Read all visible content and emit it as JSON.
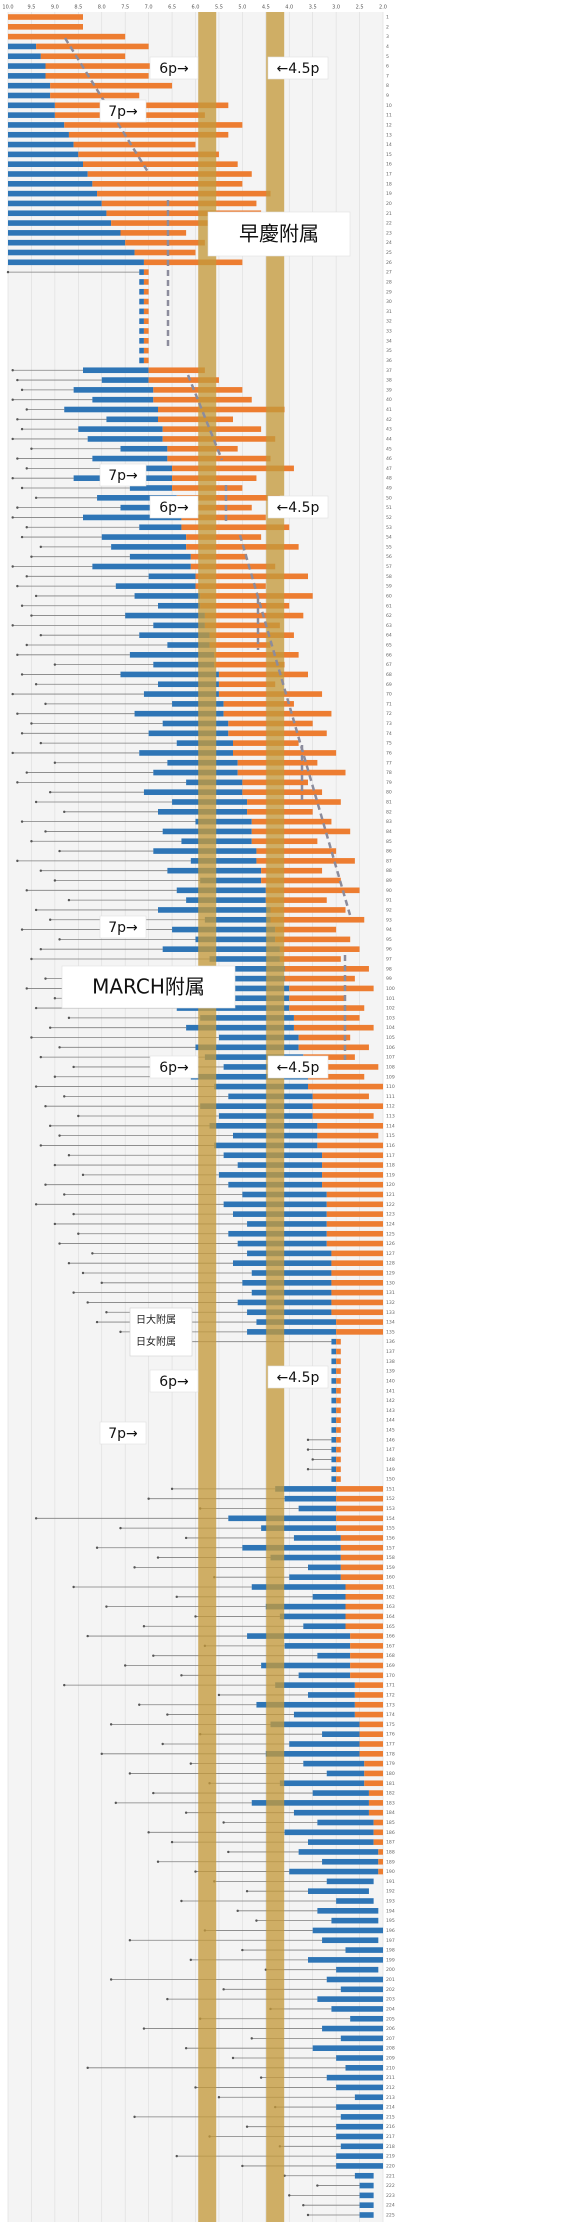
{
  "chart_data": {
    "type": "range-bar",
    "xlim": [
      10,
      2
    ],
    "xticks": [
      {
        "value": 10,
        "label": "10.0"
      },
      9.5,
      {
        "value": 9,
        "label": "9.0"
      },
      8.5,
      {
        "value": 8,
        "label": "8.0"
      },
      7.5,
      {
        "value": 7,
        "label": "7.0"
      },
      6.5,
      {
        "value": 6,
        "label": "6.0"
      },
      5.5,
      {
        "value": 5,
        "label": "5.0"
      },
      4.5,
      {
        "value": 4,
        "label": "4.0"
      },
      3.5,
      {
        "value": 3,
        "label": "3.0"
      },
      2.5,
      {
        "value": 2,
        "label": "2.0"
      }
    ],
    "grid": true,
    "colors": {
      "whisker": "#7f7f7f",
      "blue": "#2e75b6",
      "orange": "#ed7d31",
      "band": "#c49a3c"
    },
    "bands": [
      5.75,
      4.3
    ],
    "annotations": {
      "p6": "6p→",
      "p45": "←4.5p",
      "p7": "7p→",
      "group1": "早慶附属",
      "group2": "MARCH附属",
      "group3": "日大附属",
      "group4": "日女附属"
    },
    "categories": [
      1,
      2,
      3,
      4,
      5,
      6,
      7,
      8,
      9,
      10,
      11,
      12,
      13,
      14,
      15,
      16,
      17,
      18,
      19,
      20,
      21,
      22,
      23,
      24,
      25,
      26,
      27,
      28,
      29,
      30,
      31,
      32,
      33,
      34,
      35,
      36,
      37,
      38,
      39,
      40,
      41,
      42,
      43,
      44,
      45,
      46,
      47,
      48,
      49,
      50,
      51,
      52,
      53,
      54,
      55,
      56,
      57,
      58,
      59,
      60,
      61,
      62,
      63,
      64,
      65,
      66,
      67,
      68,
      69,
      70,
      71,
      72,
      73,
      74,
      75,
      76,
      77,
      78,
      79,
      80,
      81,
      82,
      83,
      84,
      85,
      86,
      87,
      88,
      89,
      90,
      91,
      92,
      93,
      94,
      95,
      96,
      97,
      98,
      99,
      100,
      101,
      102,
      103,
      104,
      105,
      106,
      107,
      108,
      109,
      110,
      111,
      112,
      113,
      114,
      115,
      116,
      117,
      118,
      119,
      120,
      121,
      122,
      123,
      124,
      125,
      126,
      127,
      128,
      129,
      130,
      131,
      132,
      133,
      134,
      135,
      136,
      137,
      138,
      139,
      140,
      141,
      142,
      143,
      144,
      145,
      146,
      147,
      148,
      149,
      150,
      151,
      152,
      153,
      154,
      155,
      156,
      157,
      158,
      159,
      160,
      161,
      162,
      163,
      164,
      165,
      166,
      167,
      168,
      169,
      170,
      171,
      172,
      173,
      174,
      175,
      176,
      177,
      178,
      179,
      180,
      181,
      182,
      183,
      184,
      185,
      186,
      187,
      188,
      189,
      190,
      191,
      192,
      193,
      194,
      195,
      196,
      197,
      198,
      199,
      200,
      201,
      202,
      203,
      204,
      205,
      206,
      207,
      208,
      209,
      210,
      211,
      212,
      213,
      214,
      215,
      216,
      217,
      218,
      219,
      220,
      221,
      222,
      223,
      224,
      225
    ],
    "rows": [
      [
        null,
        10,
        10,
        8.4
      ],
      [
        null,
        10,
        10,
        8.4
      ],
      [
        null,
        10,
        10,
        7.5
      ],
      [
        null,
        10,
        9.4,
        7.0
      ],
      [
        null,
        10,
        9.3,
        7.5
      ],
      [
        null,
        10,
        9.2,
        6.8
      ],
      [
        null,
        10,
        9.2,
        7.0
      ],
      [
        null,
        10,
        9.1,
        6.5
      ],
      [
        null,
        10,
        9.1,
        7.2
      ],
      [
        null,
        10,
        9.0,
        5.3
      ],
      [
        null,
        10,
        9.0,
        5.8
      ],
      [
        null,
        10,
        8.8,
        5.0
      ],
      [
        null,
        10,
        8.7,
        5.3
      ],
      [
        null,
        10,
        8.6,
        6.0
      ],
      [
        null,
        10,
        8.5,
        5.5
      ],
      [
        null,
        10,
        8.4,
        5.1
      ],
      [
        null,
        10,
        8.3,
        4.8
      ],
      [
        null,
        10,
        8.2,
        5.0
      ],
      [
        null,
        10,
        8.1,
        4.4
      ],
      [
        null,
        10,
        8.0,
        4.7
      ],
      [
        null,
        10,
        7.9,
        4.6
      ],
      [
        null,
        10,
        7.8,
        4.6
      ],
      [
        null,
        10,
        7.6,
        6.2
      ],
      [
        null,
        10,
        7.5,
        5.8
      ],
      [
        null,
        10,
        7.3,
        6.0
      ],
      [
        null,
        10,
        7.1,
        5.0
      ],
      [
        10,
        7.2,
        7.1,
        7.0
      ],
      [
        null,
        7.2,
        7.1,
        7.0
      ],
      [
        null,
        7.2,
        7.1,
        7.0
      ],
      [
        null,
        7.2,
        7.1,
        7.0
      ],
      [
        null,
        7.2,
        7.1,
        7.0
      ],
      [
        null,
        7.2,
        7.1,
        7.0
      ],
      [
        null,
        7.2,
        7.1,
        7.0
      ],
      [
        null,
        7.2,
        7.1,
        7.0
      ],
      [
        null,
        7.2,
        7.1,
        7.0
      ],
      [
        null,
        7.2,
        7.1,
        7.0
      ],
      [
        9.9,
        8.4,
        7.0,
        5.8
      ],
      [
        9.8,
        8.0,
        7.0,
        5.5
      ],
      [
        9.7,
        8.6,
        6.9,
        5.0
      ],
      [
        9.9,
        8.2,
        6.9,
        4.8
      ],
      [
        9.6,
        8.8,
        6.8,
        4.1
      ],
      [
        9.8,
        7.9,
        6.8,
        5.2
      ],
      [
        9.7,
        8.5,
        6.7,
        4.6
      ],
      [
        9.9,
        8.3,
        6.7,
        4.3
      ],
      [
        9.5,
        7.6,
        6.6,
        5.1
      ],
      [
        9.8,
        8.2,
        6.6,
        4.4
      ],
      [
        9.6,
        7.9,
        6.5,
        3.9
      ],
      [
        9.9,
        8.6,
        6.5,
        4.7
      ],
      [
        9.7,
        7.4,
        6.5,
        5.0
      ],
      [
        9.4,
        8.1,
        6.4,
        4.2
      ],
      [
        9.8,
        7.6,
        6.4,
        4.8
      ],
      [
        9.9,
        8.4,
        6.3,
        4.5
      ],
      [
        9.6,
        7.2,
        6.3,
        4.0
      ],
      [
        9.7,
        8.0,
        6.2,
        4.6
      ],
      [
        9.3,
        7.8,
        6.2,
        3.8
      ],
      [
        9.5,
        7.4,
        6.1,
        4.9
      ],
      [
        9.9,
        8.2,
        6.1,
        4.3
      ],
      [
        9.6,
        7.0,
        6.0,
        3.6
      ],
      [
        9.8,
        7.7,
        6.0,
        4.5
      ],
      [
        9.4,
        7.3,
        5.9,
        3.5
      ],
      [
        9.7,
        6.8,
        5.9,
        4.0
      ],
      [
        9.5,
        7.5,
        5.8,
        3.7
      ],
      [
        9.9,
        6.9,
        5.8,
        4.2
      ],
      [
        9.3,
        7.2,
        5.7,
        3.9
      ],
      [
        9.6,
        6.6,
        5.7,
        4.4
      ],
      [
        9.8,
        7.4,
        5.6,
        3.8
      ],
      [
        9.0,
        6.9,
        5.6,
        4.1
      ],
      [
        9.7,
        7.6,
        5.5,
        3.6
      ],
      [
        9.4,
        6.8,
        5.5,
        4.3
      ],
      [
        9.9,
        7.1,
        5.5,
        3.3
      ],
      [
        9.2,
        6.5,
        5.4,
        3.9
      ],
      [
        9.8,
        7.3,
        5.4,
        3.1
      ],
      [
        9.5,
        6.7,
        5.3,
        3.5
      ],
      [
        9.7,
        7.0,
        5.3,
        3.2
      ],
      [
        9.3,
        6.4,
        5.2,
        3.8
      ],
      [
        9.9,
        7.2,
        5.2,
        3.0
      ],
      [
        9.0,
        6.6,
        5.1,
        3.4
      ],
      [
        9.6,
        6.9,
        5.1,
        2.8
      ],
      [
        9.8,
        6.2,
        5.0,
        3.6
      ],
      [
        9.1,
        7.1,
        5.0,
        3.3
      ],
      [
        9.4,
        6.5,
        4.9,
        2.9
      ],
      [
        8.8,
        6.8,
        4.9,
        3.5
      ],
      [
        9.7,
        6.0,
        4.8,
        3.1
      ],
      [
        9.2,
        6.7,
        4.8,
        2.7
      ],
      [
        9.5,
        6.3,
        4.8,
        3.4
      ],
      [
        8.9,
        6.9,
        4.7,
        3.0
      ],
      [
        9.8,
        6.1,
        4.7,
        2.6
      ],
      [
        9.3,
        6.6,
        4.6,
        3.3
      ],
      [
        9.0,
        5.9,
        4.6,
        2.9
      ],
      [
        9.6,
        6.4,
        4.5,
        2.5
      ],
      [
        8.7,
        6.2,
        4.5,
        3.2
      ],
      [
        9.4,
        6.8,
        4.4,
        2.8
      ],
      [
        9.1,
        5.8,
        4.4,
        2.4
      ],
      [
        9.7,
        6.5,
        4.3,
        3.0
      ],
      [
        8.9,
        6.0,
        4.3,
        2.7
      ],
      [
        9.3,
        6.7,
        4.2,
        2.5
      ],
      [
        9.5,
        5.7,
        4.2,
        2.9
      ],
      [
        8.8,
        6.3,
        4.1,
        2.3
      ],
      [
        9.2,
        6.1,
        4.1,
        2.6
      ],
      [
        9.6,
        6.6,
        4.0,
        2.2
      ],
      [
        9.0,
        5.6,
        4.0,
        2.8
      ],
      [
        9.4,
        6.4,
        4.0,
        2.4
      ],
      [
        8.7,
        5.9,
        3.9,
        2.5
      ],
      [
        9.1,
        6.2,
        3.9,
        2.2
      ],
      [
        9.5,
        5.5,
        3.8,
        2.7
      ],
      [
        8.9,
        6.0,
        3.8,
        2.3
      ],
      [
        9.3,
        5.8,
        3.7,
        2.6
      ],
      [
        8.6,
        5.4,
        3.7,
        2.1
      ],
      [
        9.0,
        6.1,
        3.6,
        2.4
      ],
      [
        9.4,
        5.6,
        3.6,
        2.0
      ],
      [
        8.8,
        5.3,
        3.5,
        2.3
      ],
      [
        9.2,
        5.9,
        3.5,
        2.0
      ],
      [
        8.5,
        5.5,
        3.5,
        2.2
      ],
      [
        9.1,
        5.7,
        3.4,
        2.0
      ],
      [
        8.9,
        5.2,
        3.4,
        2.1
      ],
      [
        9.3,
        5.6,
        3.4,
        2.0
      ],
      [
        8.7,
        5.4,
        3.3,
        2.0
      ],
      [
        9.0,
        5.1,
        3.3,
        2.0
      ],
      [
        8.4,
        5.5,
        3.3,
        2.0
      ],
      [
        9.2,
        5.3,
        3.3,
        2.0
      ],
      [
        8.8,
        5.0,
        3.2,
        2.0
      ],
      [
        9.4,
        5.4,
        3.2,
        2.0
      ],
      [
        8.6,
        5.2,
        3.2,
        2.0
      ],
      [
        9.0,
        4.9,
        3.2,
        2.0
      ],
      [
        8.5,
        5.3,
        3.2,
        2.0
      ],
      [
        8.9,
        5.1,
        3.2,
        2.0
      ],
      [
        8.2,
        4.9,
        3.1,
        2.0
      ],
      [
        8.7,
        5.2,
        3.1,
        2.0
      ],
      [
        8.4,
        4.8,
        3.1,
        2.0
      ],
      [
        8.0,
        5.0,
        3.1,
        2.0
      ],
      [
        8.6,
        4.8,
        3.1,
        2.0
      ],
      [
        8.3,
        5.1,
        3.1,
        2.0
      ],
      [
        7.9,
        4.9,
        3.1,
        2.0
      ],
      [
        8.1,
        4.7,
        3.0,
        2.0
      ],
      [
        7.6,
        4.9,
        3.0,
        2.0
      ],
      [
        7.0,
        3.1,
        3.0,
        2.9
      ],
      [
        null,
        3.1,
        3.0,
        2.9
      ],
      [
        null,
        3.1,
        3.0,
        2.9
      ],
      [
        null,
        3.1,
        3.0,
        2.9
      ],
      [
        null,
        3.1,
        3.0,
        2.9
      ],
      [
        null,
        3.1,
        3.0,
        2.9
      ],
      [
        null,
        3.1,
        3.0,
        2.9
      ],
      [
        null,
        3.1,
        3.0,
        2.9
      ],
      [
        null,
        3.1,
        3.0,
        2.9
      ],
      [
        null,
        3.1,
        3.0,
        2.9
      ],
      [
        3.6,
        3.1,
        3.0,
        2.9
      ],
      [
        3.6,
        3.1,
        3.0,
        2.9
      ],
      [
        3.5,
        3.1,
        3.0,
        2.9
      ],
      [
        3.6,
        3.1,
        3.0,
        2.9
      ],
      [
        null,
        3.1,
        3.0,
        2.9
      ],
      [
        6.5,
        4.3,
        3.0,
        2.0
      ],
      [
        7.0,
        4.1,
        3.0,
        2.0
      ],
      [
        5.9,
        3.8,
        3.0,
        2.0
      ],
      [
        9.4,
        5.3,
        3.0,
        2.0
      ],
      [
        7.6,
        4.6,
        3.0,
        2.0
      ],
      [
        6.2,
        3.9,
        2.9,
        2.0
      ],
      [
        8.1,
        5.0,
        2.9,
        2.0
      ],
      [
        6.8,
        4.4,
        2.9,
        2.0
      ],
      [
        7.3,
        3.6,
        2.9,
        2.0
      ],
      [
        5.6,
        4.0,
        2.9,
        2.0
      ],
      [
        8.6,
        4.8,
        2.8,
        2.0
      ],
      [
        6.4,
        3.5,
        2.8,
        2.0
      ],
      [
        7.9,
        4.5,
        2.8,
        2.0
      ],
      [
        6.0,
        4.2,
        2.8,
        2.0
      ],
      [
        7.1,
        3.7,
        2.8,
        2.0
      ],
      [
        8.3,
        4.9,
        2.7,
        2.0
      ],
      [
        5.8,
        4.1,
        2.7,
        2.0
      ],
      [
        6.9,
        3.4,
        2.7,
        2.0
      ],
      [
        7.5,
        4.6,
        2.7,
        2.0
      ],
      [
        6.3,
        3.8,
        2.7,
        2.0
      ],
      [
        8.8,
        4.3,
        2.6,
        2.0
      ],
      [
        5.5,
        3.6,
        2.6,
        2.0
      ],
      [
        7.2,
        4.7,
        2.6,
        2.0
      ],
      [
        6.6,
        3.9,
        2.6,
        2.0
      ],
      [
        7.8,
        4.4,
        2.5,
        2.0
      ],
      [
        5.9,
        3.3,
        2.5,
        2.0
      ],
      [
        6.7,
        4.0,
        2.5,
        2.0
      ],
      [
        8.0,
        4.5,
        2.5,
        2.0
      ],
      [
        6.1,
        3.7,
        2.4,
        2.0
      ],
      [
        7.4,
        3.2,
        2.4,
        2.0
      ],
      [
        5.7,
        4.2,
        2.4,
        2.0
      ],
      [
        6.9,
        3.5,
        2.3,
        2.0
      ],
      [
        7.7,
        4.8,
        2.3,
        2.0
      ],
      [
        6.2,
        3.9,
        2.3,
        2.0
      ],
      [
        5.4,
        3.4,
        2.2,
        2.0
      ],
      [
        7.0,
        4.1,
        2.2,
        2.0
      ],
      [
        6.5,
        3.6,
        2.2,
        2.0
      ],
      [
        5.3,
        3.8,
        2.1,
        2.0
      ],
      [
        6.8,
        3.3,
        2.1,
        2.0
      ],
      [
        6.0,
        4.0,
        2.1,
        2.0
      ],
      [
        5.6,
        3.2,
        2.2,
        2.2
      ],
      [
        4.9,
        3.6,
        2.3,
        2.3
      ],
      [
        6.3,
        3.0,
        2.2,
        2.2
      ],
      [
        5.1,
        3.4,
        2.1,
        2.1
      ],
      [
        4.7,
        3.1,
        2.1,
        2.1
      ],
      [
        5.8,
        3.5,
        2.0,
        2.0
      ],
      [
        7.4,
        3.3,
        2.1,
        2.1
      ],
      [
        5.0,
        2.8,
        2.0,
        2.0
      ],
      [
        6.1,
        3.6,
        2.0,
        2.0
      ],
      [
        4.5,
        3.0,
        2.1,
        2.1
      ],
      [
        7.8,
        3.2,
        2.0,
        2.0
      ],
      [
        5.4,
        2.9,
        2.0,
        2.0
      ],
      [
        6.6,
        3.4,
        2.0,
        2.0
      ],
      [
        4.4,
        3.1,
        2.0,
        2.0
      ],
      [
        5.9,
        2.7,
        2.0,
        2.0
      ],
      [
        7.1,
        3.3,
        2.0,
        2.0
      ],
      [
        4.8,
        2.9,
        2.0,
        2.0
      ],
      [
        6.2,
        3.5,
        2.0,
        2.0
      ],
      [
        5.2,
        3.0,
        2.0,
        2.0
      ],
      [
        8.3,
        2.8,
        2.0,
        2.0
      ],
      [
        4.6,
        3.2,
        2.0,
        2.0
      ],
      [
        6.0,
        3.0,
        2.0,
        2.0
      ],
      [
        5.5,
        2.6,
        2.0,
        2.0
      ],
      [
        4.3,
        3.0,
        2.0,
        2.0
      ],
      [
        7.3,
        2.9,
        2.0,
        2.0
      ],
      [
        4.9,
        3.0,
        2.0,
        2.0
      ],
      [
        5.7,
        3.0,
        2.0,
        2.0
      ],
      [
        4.2,
        2.9,
        2.0,
        2.0
      ],
      [
        6.4,
        3.0,
        2.0,
        2.0
      ],
      [
        5.0,
        3.0,
        2.0,
        2.0
      ],
      [
        4.1,
        2.6,
        2.2,
        2.2
      ],
      [
        3.4,
        2.5,
        2.2,
        2.2
      ],
      [
        4.0,
        2.5,
        2.2,
        2.2
      ],
      [
        3.7,
        2.5,
        2.2,
        2.2
      ],
      [
        3.6,
        2.5,
        2.2,
        2.2
      ]
    ]
  }
}
